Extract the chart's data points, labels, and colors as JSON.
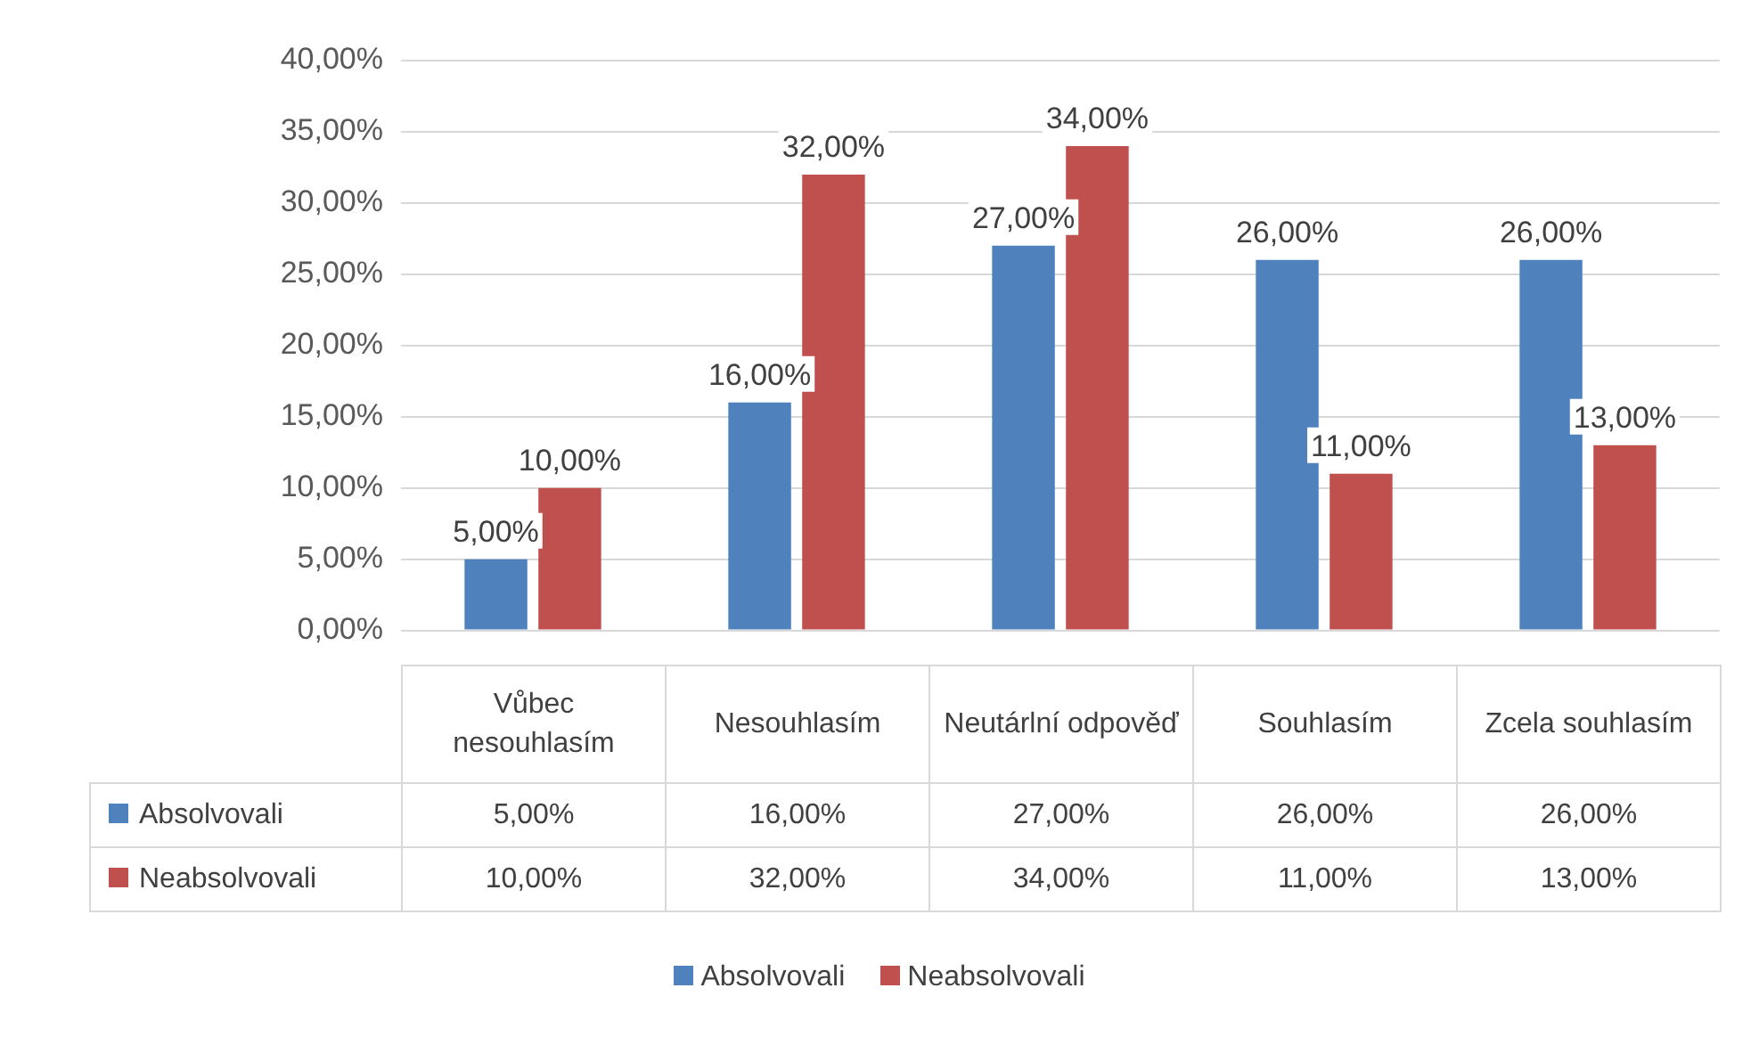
{
  "chart_data": {
    "type": "bar",
    "categories": [
      "Vůbec nesouhlasím",
      "Nesouhlasím",
      "Neutárlní odpověď",
      "Souhlasím",
      "Zcela souhlasím"
    ],
    "series": [
      {
        "name": "Absolvovali",
        "color": "#4f81bd",
        "values": [
          5,
          16,
          27,
          26,
          26
        ],
        "value_labels": [
          "5,00%",
          "16,00%",
          "27,00%",
          "26,00%",
          "26,00%"
        ]
      },
      {
        "name": "Neabsolvovali",
        "color": "#c0504d",
        "values": [
          10,
          32,
          34,
          11,
          13
        ],
        "value_labels": [
          "10,00%",
          "32,00%",
          "34,00%",
          "11,00%",
          "13,00%"
        ]
      }
    ],
    "ylim": [
      0,
      40
    ],
    "yticks": [
      {
        "value": 0,
        "label": "0,00%"
      },
      {
        "value": 5,
        "label": "5,00%"
      },
      {
        "value": 10,
        "label": "10,00%"
      },
      {
        "value": 15,
        "label": "15,00%"
      },
      {
        "value": 20,
        "label": "20,00%"
      },
      {
        "value": 25,
        "label": "25,00%"
      },
      {
        "value": 30,
        "label": "30,00%"
      },
      {
        "value": 35,
        "label": "35,00%"
      },
      {
        "value": 40,
        "label": "40,00%"
      }
    ],
    "grid": "y",
    "legend": "bottom",
    "data_labels": true
  }
}
